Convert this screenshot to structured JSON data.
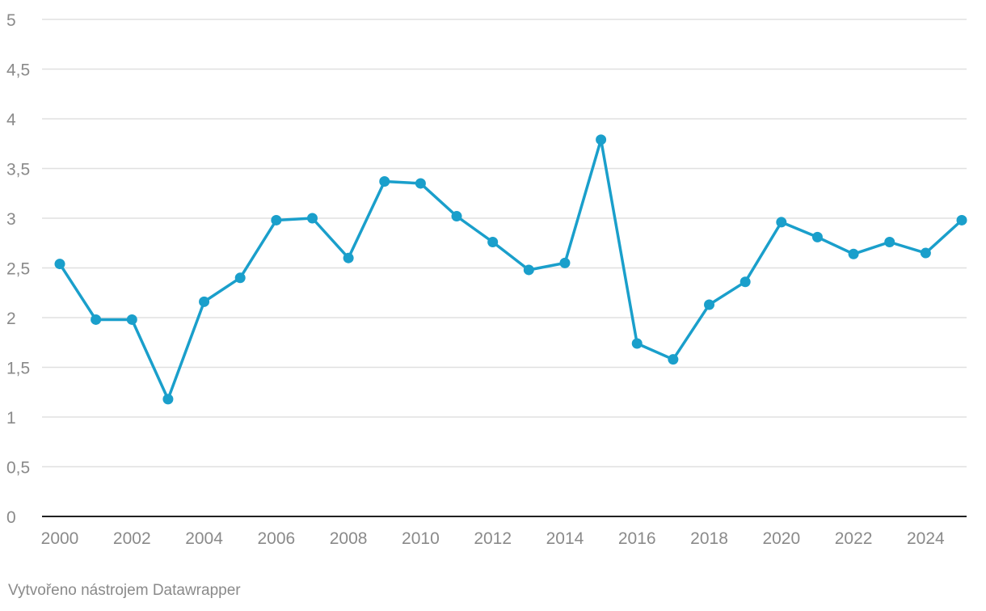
{
  "chart_data": {
    "type": "line",
    "x": [
      2000,
      2001,
      2002,
      2003,
      2004,
      2005,
      2006,
      2007,
      2008,
      2009,
      2010,
      2011,
      2012,
      2013,
      2014,
      2015,
      2016,
      2017,
      2018,
      2019,
      2020,
      2021,
      2022,
      2023,
      2024,
      2025
    ],
    "series": [
      {
        "values": [
          2.54,
          1.98,
          1.98,
          1.18,
          2.16,
          2.4,
          2.98,
          3.0,
          2.6,
          3.37,
          3.35,
          3.02,
          2.76,
          2.48,
          2.55,
          3.79,
          1.74,
          1.58,
          2.13,
          2.36,
          2.96,
          2.81,
          2.64,
          2.76,
          2.65,
          2.98
        ],
        "color": "#1a9fcb"
      }
    ],
    "title": "",
    "xlabel": "",
    "ylabel": "",
    "xlim": [
      2000,
      2025
    ],
    "ylim": [
      0,
      5
    ],
    "y_ticks": [
      0,
      0.5,
      1,
      1.5,
      2,
      2.5,
      3,
      3.5,
      4,
      4.5,
      5
    ],
    "y_tick_labels": [
      "0",
      "0,5",
      "1",
      "1,5",
      "2",
      "2,5",
      "3",
      "3,5",
      "4",
      "4,5",
      "5"
    ],
    "x_ticks": [
      2000,
      2002,
      2004,
      2006,
      2008,
      2010,
      2012,
      2014,
      2016,
      2018,
      2020,
      2022,
      2024
    ],
    "x_tick_labels": [
      "2000",
      "2002",
      "2004",
      "2006",
      "2008",
      "2010",
      "2012",
      "2014",
      "2016",
      "2018",
      "2020",
      "2022",
      "2024"
    ],
    "grid": true,
    "legend": "none"
  },
  "footer": {
    "credit": "Vytvořeno nástrojem Datawrapper"
  },
  "colors": {
    "grid": "#e0e0e0",
    "axis": "#222222",
    "text": "#8a8a8a"
  }
}
